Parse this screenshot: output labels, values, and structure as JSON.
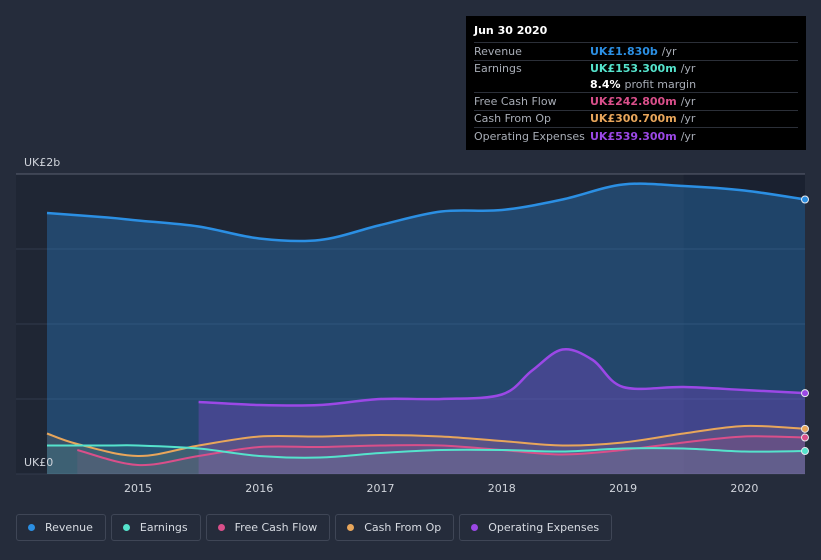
{
  "chart_data": {
    "type": "area",
    "title": "",
    "xlabel": "",
    "ylabel": "",
    "ylim": [
      0,
      2.0
    ],
    "xlim": [
      2014.25,
      2020.5
    ],
    "y_tick_labels": [
      "UK£2b",
      "UK£0"
    ],
    "x_ticks": [
      2015,
      2016,
      2017,
      2018,
      2019,
      2020
    ],
    "x_tick_labels": [
      "2015",
      "2016",
      "2017",
      "2018",
      "2019",
      "2020"
    ],
    "highlight_range": [
      2019.5,
      2020.5
    ],
    "series": [
      {
        "name": "Revenue",
        "color": "#2b8fe3",
        "x": [
          2014.25,
          2014.75,
          2015.0,
          2015.5,
          2016.0,
          2016.5,
          2017.0,
          2017.5,
          2018.0,
          2018.5,
          2019.0,
          2019.5,
          2020.0,
          2020.5
        ],
        "values": [
          1.74,
          1.71,
          1.69,
          1.65,
          1.57,
          1.56,
          1.66,
          1.75,
          1.76,
          1.83,
          1.93,
          1.92,
          1.89,
          1.83
        ]
      },
      {
        "name": "Earnings",
        "color": "#55e3cc",
        "x": [
          2014.25,
          2014.75,
          2015.0,
          2015.5,
          2016.0,
          2016.5,
          2017.0,
          2017.5,
          2018.0,
          2018.5,
          2019.0,
          2019.5,
          2020.0,
          2020.5
        ],
        "values": [
          0.19,
          0.19,
          0.19,
          0.17,
          0.12,
          0.11,
          0.14,
          0.16,
          0.16,
          0.15,
          0.17,
          0.17,
          0.15,
          0.153
        ]
      },
      {
        "name": "Free Cash Flow",
        "color": "#d94f8a",
        "x": [
          2014.5,
          2015.0,
          2015.5,
          2016.0,
          2016.5,
          2017.0,
          2017.5,
          2018.0,
          2018.5,
          2019.0,
          2019.5,
          2020.0,
          2020.5
        ],
        "values": [
          0.16,
          0.06,
          0.12,
          0.18,
          0.18,
          0.19,
          0.19,
          0.16,
          0.13,
          0.16,
          0.21,
          0.25,
          0.243
        ]
      },
      {
        "name": "Cash From Op",
        "color": "#e8a65b",
        "x": [
          2014.25,
          2014.5,
          2015.0,
          2015.5,
          2016.0,
          2016.5,
          2017.0,
          2017.5,
          2018.0,
          2018.5,
          2019.0,
          2019.5,
          2020.0,
          2020.5
        ],
        "values": [
          0.27,
          0.2,
          0.12,
          0.19,
          0.25,
          0.25,
          0.26,
          0.25,
          0.22,
          0.19,
          0.21,
          0.27,
          0.32,
          0.301
        ]
      },
      {
        "name": "Operating Expenses",
        "color": "#9b48e6",
        "x": [
          2015.5,
          2016.0,
          2016.5,
          2017.0,
          2017.5,
          2018.0,
          2018.25,
          2018.5,
          2018.75,
          2019.0,
          2019.5,
          2020.0,
          2020.5
        ],
        "values": [
          0.48,
          0.46,
          0.46,
          0.5,
          0.5,
          0.53,
          0.69,
          0.83,
          0.76,
          0.58,
          0.58,
          0.56,
          0.539
        ]
      }
    ]
  },
  "tooltip": {
    "date": "Jun 30 2020",
    "rows": [
      {
        "label": "Revenue",
        "value": "UK£1.830b",
        "unit": "/yr",
        "color": "#2b8fe3"
      },
      {
        "label": "Earnings",
        "value": "UK£153.300m",
        "unit": "/yr",
        "color": "#55e3cc"
      },
      {
        "label": "Free Cash Flow",
        "value": "UK£242.800m",
        "unit": "/yr",
        "color": "#d94f8a"
      },
      {
        "label": "Cash From Op",
        "value": "UK£300.700m",
        "unit": "/yr",
        "color": "#e8a65b"
      },
      {
        "label": "Operating Expenses",
        "value": "UK£539.300m",
        "unit": "/yr",
        "color": "#9b48e6"
      }
    ],
    "margin_value": "8.4%",
    "margin_label": "profit margin"
  },
  "legend": [
    {
      "label": "Revenue",
      "color": "#2b8fe3"
    },
    {
      "label": "Earnings",
      "color": "#55e3cc"
    },
    {
      "label": "Free Cash Flow",
      "color": "#d94f8a"
    },
    {
      "label": "Cash From Op",
      "color": "#e8a65b"
    },
    {
      "label": "Operating Expenses",
      "color": "#9b48e6"
    }
  ]
}
